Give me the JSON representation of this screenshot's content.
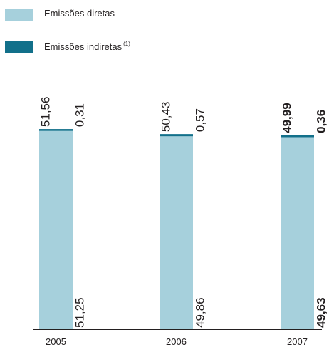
{
  "colors": {
    "direct": "#a6d0dc",
    "indirect": "#12708a",
    "text": "#231f20",
    "axis": "#231f20"
  },
  "legend": {
    "direct_label": "Emissões diretas",
    "indirect_label": "Emissões indiretas",
    "indirect_note": "(1)"
  },
  "chart_data": {
    "type": "bar",
    "stacked": true,
    "categories": [
      "2005",
      "2006",
      "2007"
    ],
    "series": [
      {
        "name": "Emissões diretas",
        "values": [
          51.25,
          49.86,
          49.63
        ]
      },
      {
        "name": "Emissões indiretas",
        "values": [
          0.31,
          0.57,
          0.36
        ]
      }
    ],
    "totals": [
      51.56,
      50.43,
      49.99
    ],
    "value_labels": {
      "direct": [
        "51,25",
        "49,86",
        "49,63"
      ],
      "indirect": [
        "0,31",
        "0,57",
        "0,36"
      ],
      "total": [
        "51,56",
        "50,43",
        "49,99"
      ]
    },
    "highlight_category": "2007",
    "ylim": [
      0,
      51.56
    ],
    "grid": false,
    "legend_position": "top-left"
  }
}
